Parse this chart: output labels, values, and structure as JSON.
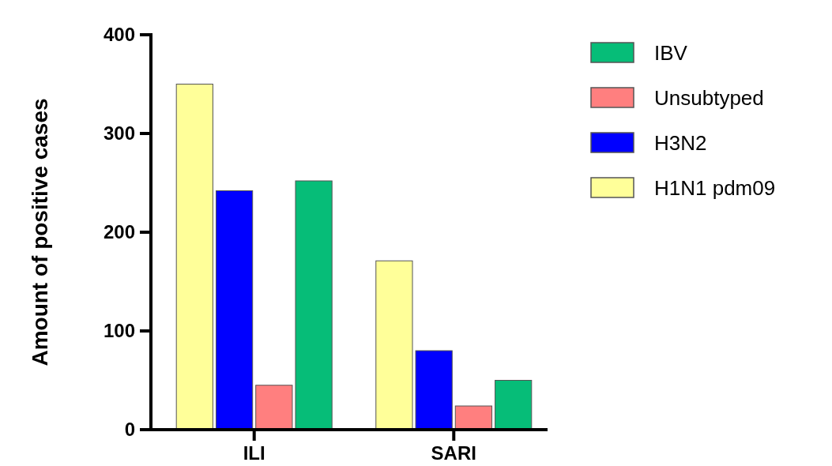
{
  "chart_data": {
    "type": "bar",
    "ylabel": "Amount of positive cases",
    "categories": [
      "ILI",
      "SARI"
    ],
    "series": [
      {
        "name": "H1N1 pdm09",
        "color": "#ffff99",
        "values": [
          350,
          171
        ]
      },
      {
        "name": "H3N2",
        "color": "#0000ff",
        "values": [
          242,
          80
        ]
      },
      {
        "name": "Unsubtyped",
        "color": "#ff7f7f",
        "values": [
          45,
          24
        ]
      },
      {
        "name": "IBV",
        "color": "#06bd78",
        "values": [
          252,
          50
        ]
      }
    ],
    "ylim": [
      0,
      400
    ],
    "yticks": [
      0,
      100,
      200,
      300,
      400
    ],
    "grid": false,
    "legend": "right"
  }
}
